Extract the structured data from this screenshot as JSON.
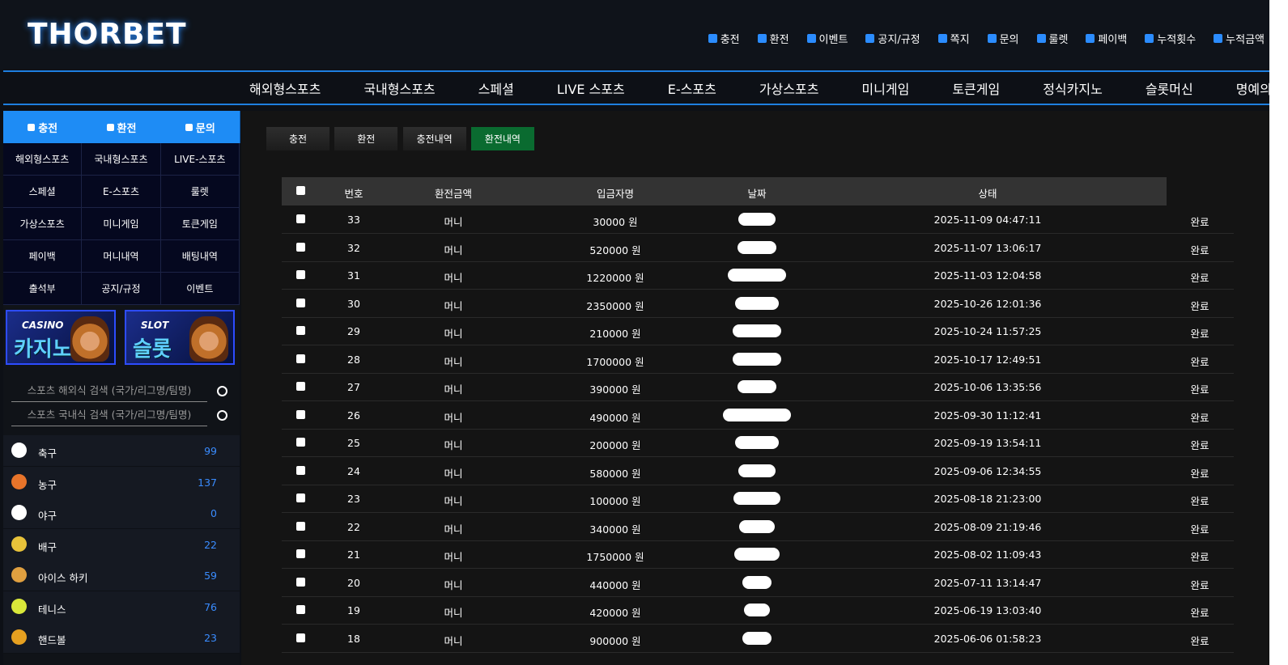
{
  "logo": "THORBET",
  "top_links": [
    "충전",
    "환전",
    "이벤트",
    "공지/규정",
    "쪽지",
    "문의",
    "룰렛",
    "페이백",
    "누적횟수",
    "누적금액"
  ],
  "main_nav": [
    "해외형스포츠",
    "국내형스포츠",
    "스페셜",
    "LIVE 스포츠",
    "E-스포츠",
    "가상스포츠",
    "미니게임",
    "토큰게임",
    "정식카지노",
    "슬롯머신",
    "명예의전당"
  ],
  "side_buttons": [
    "충전",
    "환전",
    "문의"
  ],
  "side_menu": [
    "해외형스포츠",
    "국내형스포츠",
    "LIVE-스포츠",
    "스페셜",
    "E-스포츠",
    "룰렛",
    "가상스포츠",
    "미니게임",
    "토큰게임",
    "페이백",
    "머니내역",
    "배팅내역",
    "출석부",
    "공지/규정",
    "이벤트"
  ],
  "banners": [
    {
      "tag": "CASINO",
      "title": "카지노"
    },
    {
      "tag": "SLOT",
      "title": "슬롯"
    }
  ],
  "search": [
    "스포츠 해외식 검색 (국가/리그명/팀명)",
    "스포츠 국내식 검색 (국가/리그명/팀명)"
  ],
  "sports": [
    {
      "name": "축구",
      "count": 99
    },
    {
      "name": "농구",
      "count": 137
    },
    {
      "name": "야구",
      "count": 0
    },
    {
      "name": "배구",
      "count": 22
    },
    {
      "name": "아이스 하키",
      "count": 59
    },
    {
      "name": "테니스",
      "count": 76
    },
    {
      "name": "핸드볼",
      "count": 23
    }
  ],
  "tabs": [
    "충전",
    "환전",
    "충전내역",
    "환전내역"
  ],
  "active_tab": 3,
  "table": {
    "headers": [
      "번호",
      "환전금액",
      "입금자명",
      "날짜",
      "상태"
    ],
    "rows": [
      [
        "33",
        "머니",
        "30000 원",
        "2025-11-09 04:47:11",
        "완료"
      ],
      [
        "32",
        "머니",
        "520000 원",
        "2025-11-07 13:06:17",
        "완료"
      ],
      [
        "31",
        "머니",
        "1220000 원",
        "2025-11-03 12:04:58",
        "완료"
      ],
      [
        "30",
        "머니",
        "2350000 원",
        "2025-10-26 12:01:36",
        "완료"
      ],
      [
        "29",
        "머니",
        "210000 원",
        "2025-10-24 11:57:25",
        "완료"
      ],
      [
        "28",
        "머니",
        "1700000 원",
        "2025-10-17 12:49:51",
        "완료"
      ],
      [
        "27",
        "머니",
        "390000 원",
        "2025-10-06 13:35:56",
        "완료"
      ],
      [
        "26",
        "머니",
        "490000 원",
        "2025-09-30 11:12:41",
        "완료"
      ],
      [
        "25",
        "머니",
        "200000 원",
        "2025-09-19 13:54:11",
        "완료"
      ],
      [
        "24",
        "머니",
        "580000 원",
        "2025-09-06 12:34:55",
        "완료"
      ],
      [
        "23",
        "머니",
        "100000 원",
        "2025-08-18 21:23:00",
        "완료"
      ],
      [
        "22",
        "머니",
        "340000 원",
        "2025-08-09 21:19:46",
        "완료"
      ],
      [
        "21",
        "머니",
        "1750000 원",
        "2025-08-02 11:09:43",
        "완료"
      ],
      [
        "20",
        "머니",
        "440000 원",
        "2025-07-11 13:14:47",
        "완료"
      ],
      [
        "19",
        "머니",
        "420000 원",
        "2025-06-19 13:03:40",
        "완료"
      ],
      [
        "18",
        "머니",
        "900000 원",
        "2025-06-06 01:58:23",
        "완료"
      ]
    ]
  }
}
